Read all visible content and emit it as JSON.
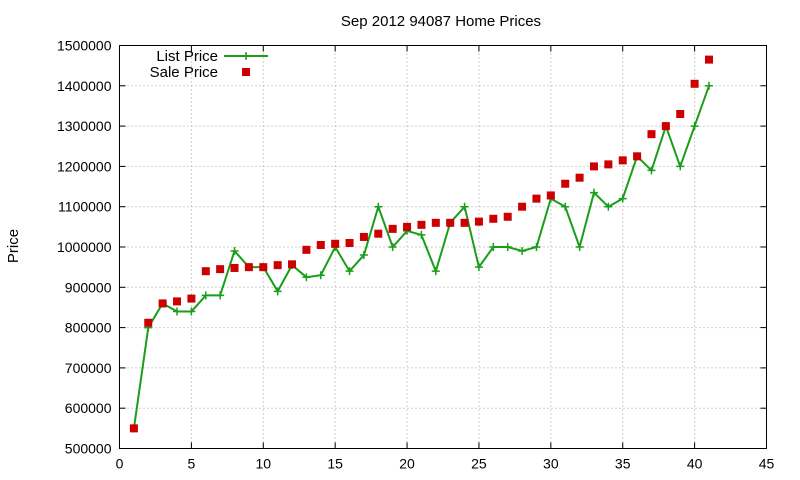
{
  "chart_data": {
    "type": "line",
    "title": "Sep 2012 94087 Home Prices",
    "xlabel": "",
    "ylabel": "Price",
    "xlim": [
      0,
      45
    ],
    "ylim": [
      500000,
      1500000
    ],
    "xticks": [
      "0",
      "5",
      "10",
      "15",
      "20",
      "25",
      "30",
      "35",
      "40",
      "45"
    ],
    "yticks": [
      "500000",
      "600000",
      "700000",
      "800000",
      "900000",
      "1000000",
      "1100000",
      "1200000",
      "1300000",
      "1400000",
      "1500000"
    ],
    "grid": true,
    "legend_position": "top-left",
    "x": [
      1,
      2,
      3,
      4,
      5,
      6,
      7,
      8,
      9,
      10,
      11,
      12,
      13,
      14,
      15,
      16,
      17,
      18,
      19,
      20,
      21,
      22,
      23,
      24,
      25,
      26,
      27,
      28,
      29,
      30,
      31,
      32,
      33,
      34,
      35,
      36,
      37,
      38,
      39,
      40,
      41
    ],
    "series": [
      {
        "name": "List Price",
        "style": "line-plus",
        "color": "#1a9e1a",
        "values": [
          550000,
          800000,
          860000,
          840000,
          840000,
          880000,
          880000,
          990000,
          950000,
          950000,
          890000,
          955000,
          925000,
          930000,
          1000000,
          940000,
          980000,
          1100000,
          1000000,
          1040000,
          1030000,
          940000,
          1060000,
          1100000,
          950000,
          1000000,
          1000000,
          990000,
          1000000,
          1120000,
          1100000,
          1000000,
          1135000,
          1100000,
          1120000,
          1225000,
          1190000,
          1300000,
          1200000,
          1300000,
          1400000
        ]
      },
      {
        "name": "Sale Price",
        "style": "square-points",
        "color": "#cc0000",
        "values": [
          550000,
          812000,
          860000,
          865000,
          872000,
          940000,
          945000,
          948000,
          950000,
          950000,
          955000,
          957000,
          993000,
          1005000,
          1008000,
          1010000,
          1025000,
          1033000,
          1045000,
          1050000,
          1055000,
          1060000,
          1060000,
          1060000,
          1063000,
          1070000,
          1075000,
          1100000,
          1120000,
          1128000,
          1157000,
          1172000,
          1200000,
          1205000,
          1215000,
          1225000,
          1280000,
          1300000,
          1330000,
          1405000,
          1465000
        ]
      }
    ]
  }
}
